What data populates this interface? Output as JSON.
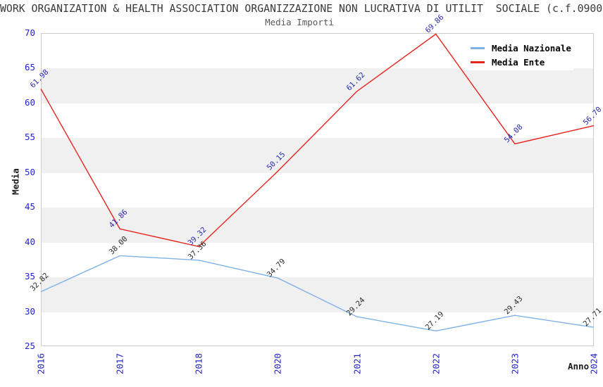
{
  "title": "WORK ORGANIZATION & HEALTH ASSOCIATION ORGANIZZAZIONE NON LUCRATIVA DI UTILIT  SOCIALE (c.f.0900",
  "subtitle": "Media Importi",
  "chart_data": {
    "type": "line",
    "categories": [
      "2016",
      "2017",
      "2018",
      "2020",
      "2021",
      "2022",
      "2023",
      "2024"
    ],
    "series": [
      {
        "name": "Media Nazionale",
        "color": "#7eb2e8",
        "label_color": "#2a2a2a",
        "values": [
          32.82,
          38.0,
          37.36,
          34.79,
          29.24,
          27.19,
          29.43,
          27.71
        ]
      },
      {
        "name": "Media Ente",
        "color": "#e8231d",
        "label_color": "#2929b0",
        "values": [
          61.98,
          41.86,
          39.32,
          50.15,
          61.62,
          69.86,
          54.08,
          56.7
        ]
      }
    ],
    "title": "Media Importi",
    "xlabel": "Anno",
    "ylabel": "Media",
    "ylim": [
      25,
      70
    ],
    "ytick_step": 5,
    "yticks": [
      25,
      30,
      35,
      40,
      45,
      50,
      55,
      60,
      65,
      70
    ],
    "grid_bands": [
      [
        30,
        35
      ],
      [
        40,
        45
      ],
      [
        50,
        55
      ],
      [
        60,
        65
      ]
    ],
    "band_color": "#f0f0f0",
    "tick_label_color": "#2222cc",
    "frame_color": "#cccccc",
    "legend_position": "top-right",
    "grid": "horizontal-bands"
  }
}
